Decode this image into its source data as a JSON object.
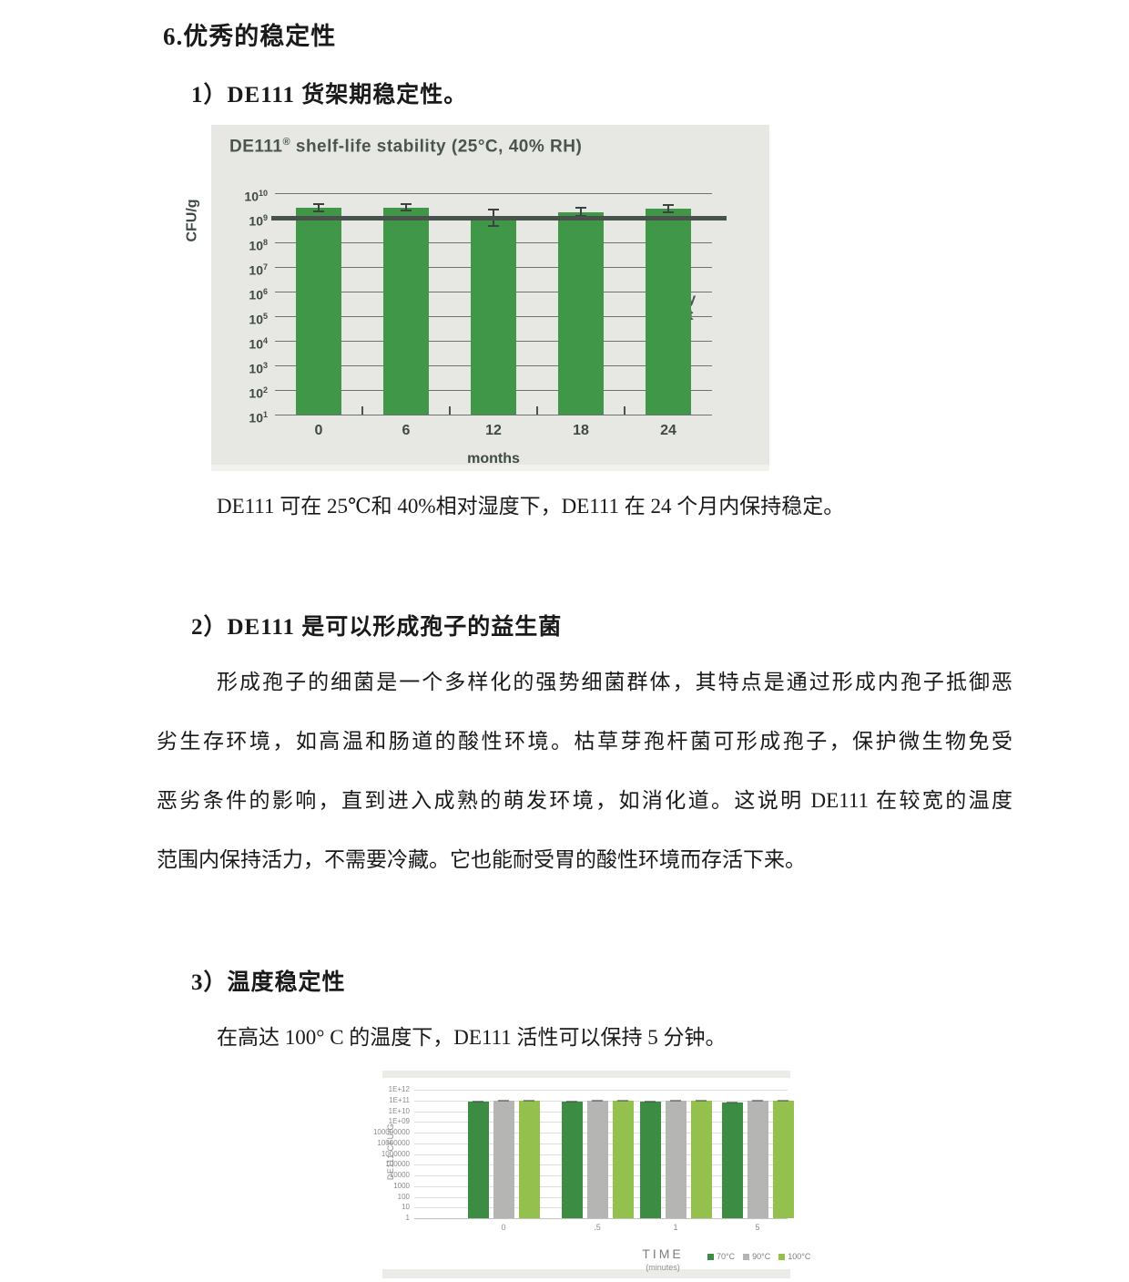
{
  "page": {
    "heading1": "6.优秀的稳定性",
    "section1": {
      "heading": "1）DE111 货架期稳定性。",
      "caption": "DE111 可在 25℃和 40%相对湿度下，DE111 在 24 个月内保持稳定。"
    },
    "section2": {
      "heading": "2）DE111 是可以形成孢子的益生菌",
      "paragraph_lines": [
        "形成孢子的细菌是一个多样化的强势细菌群体，其特点是通过形成内孢子抵御恶",
        "劣生存环境，如高温和肠道的酸性环境。枯草芽孢杆菌可形成孢子，保护微生物免受",
        "恶劣条件的影响，直到进入成熟的萌发环境，如消化道。这说明 DE111 在较宽的温度",
        "范围内保持活力，不需要冷藏。它也能耐受胃的酸性环境而存活下来。"
      ]
    },
    "section3": {
      "heading": "3）温度稳定性",
      "text": "在高达 100° C 的温度下，DE111 活性可以保持 5 分钟。"
    }
  },
  "chart_data": [
    {
      "type": "bar",
      "title_brand": "DE111",
      "title_reg": "®",
      "title_rest": " shelf-life stability (25°C, 40% RH)",
      "ylabel": "CFU/g",
      "xlabel": "months",
      "y_scale": "log10",
      "ylim": [
        10,
        10000000000
      ],
      "y_tick_exponents": [
        10,
        9,
        8,
        7,
        6,
        5,
        4,
        3,
        2,
        1
      ],
      "categories": [
        "0",
        "6",
        "12",
        "18",
        "24"
      ],
      "values": [
        2500000000.0,
        2600000000.0,
        950000000.0,
        1700000000.0,
        2300000000.0
      ],
      "error_ranges": [
        [
          1800000000.0,
          3600000000.0
        ],
        [
          1900000000.0,
          3600000000.0
        ],
        [
          450000000.0,
          2100000000.0
        ],
        [
          1200000000.0,
          2500000000.0
        ],
        [
          1700000000.0,
          3300000000.0
        ]
      ],
      "target_line": {
        "value": 1000000000.0,
        "label": "Assay target"
      },
      "bar_color": "#3f9747",
      "panel_bg": "#e7e7e4",
      "legend_position": "none",
      "grid": true
    },
    {
      "type": "bar",
      "title": "",
      "ylabel": "DE111 CFU/G",
      "xlabel": "TIME",
      "xlabel_sub": "(minutes)",
      "y_scale": "log10",
      "ylim": [
        1,
        1000000000000.0
      ],
      "y_tick_labels": [
        "1E+12",
        "1E+11",
        "1E+10",
        "1E+09",
        "100000000",
        "10000000",
        "1000000",
        "100000",
        "10000",
        "1000",
        "100",
        "10",
        "1"
      ],
      "y_tick_values": [
        1000000000000.0,
        100000000000.0,
        10000000000.0,
        1000000000.0,
        100000000.0,
        10000000.0,
        1000000.0,
        100000.0,
        10000.0,
        1000.0,
        100.0,
        10,
        1
      ],
      "categories": [
        "0",
        ".5",
        "1",
        "5"
      ],
      "series": [
        {
          "name": "70°C",
          "color": "#3d8c43",
          "values": [
            85000000000.0,
            85000000000.0,
            85000000000.0,
            70000000000.0
          ]
        },
        {
          "name": "90°C",
          "color": "#b5b5b3",
          "values": [
            100000000000.0,
            105000000000.0,
            105000000000.0,
            100000000000.0
          ]
        },
        {
          "name": "100°C",
          "color": "#94c14e",
          "values": [
            90000000000.0,
            100000000000.0,
            90000000000.0,
            95000000000.0
          ]
        }
      ],
      "legend_position": "bottom-right",
      "grid": true
    }
  ]
}
